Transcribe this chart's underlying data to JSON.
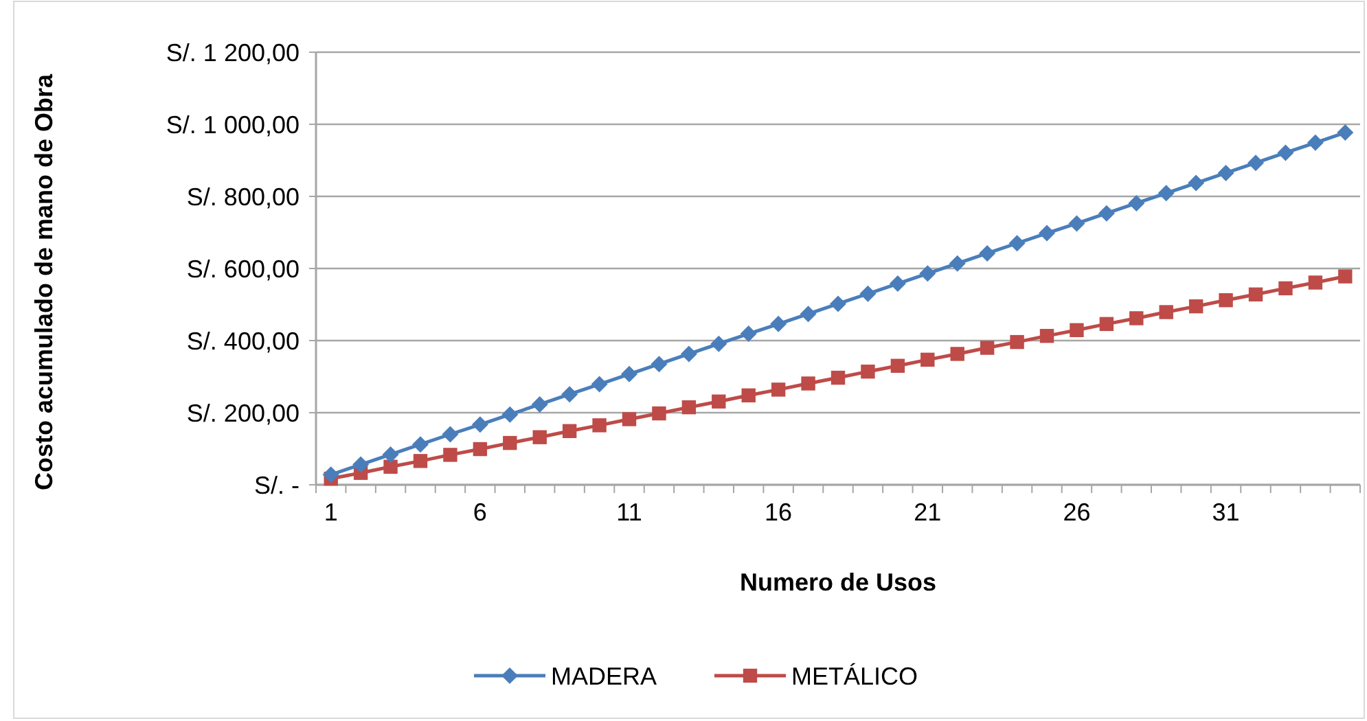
{
  "chart_data": {
    "type": "line",
    "xlabel": "Numero de Usos",
    "ylabel": "Costo acumulado de mano de Obra",
    "x": [
      1,
      2,
      3,
      4,
      5,
      6,
      7,
      8,
      9,
      10,
      11,
      12,
      13,
      14,
      15,
      16,
      17,
      18,
      19,
      20,
      21,
      22,
      23,
      24,
      25,
      26,
      27,
      28,
      29,
      30,
      31,
      32,
      33,
      34,
      35
    ],
    "xlim": [
      0.5,
      35.5
    ],
    "xticks": [
      1,
      6,
      11,
      16,
      21,
      26,
      31
    ],
    "series": [
      {
        "name": "MADERA",
        "color": "#4a7ebb",
        "marker": "diamond",
        "values": [
          28,
          56,
          84,
          112,
          140,
          167,
          195,
          223,
          251,
          279,
          307,
          335,
          363,
          391,
          419,
          446,
          474,
          502,
          530,
          558,
          586,
          614,
          642,
          670,
          698,
          725,
          753,
          781,
          809,
          837,
          865,
          893,
          921,
          949,
          977
        ]
      },
      {
        "name": "METÁLICO",
        "color": "#be4b48",
        "marker": "square",
        "values": [
          17,
          33,
          50,
          66,
          83,
          99,
          116,
          132,
          149,
          165,
          182,
          198,
          215,
          231,
          248,
          264,
          281,
          297,
          314,
          330,
          347,
          363,
          380,
          396,
          413,
          429,
          446,
          462,
          479,
          495,
          512,
          528,
          545,
          561,
          578
        ]
      }
    ],
    "ylim": [
      0,
      1200
    ],
    "yticks": [
      {
        "value": 0,
        "label": "S/. -"
      },
      {
        "value": 200,
        "label": "S/. 200,00"
      },
      {
        "value": 400,
        "label": "S/. 400,00"
      },
      {
        "value": 600,
        "label": "S/. 600,00"
      },
      {
        "value": 800,
        "label": "S/. 800,00"
      },
      {
        "value": 1000,
        "label": "S/. 1 000,00"
      },
      {
        "value": 1200,
        "label": "S/. 1 200,00"
      }
    ],
    "grid": "y",
    "legend": "bottom",
    "line_style": "solid"
  }
}
